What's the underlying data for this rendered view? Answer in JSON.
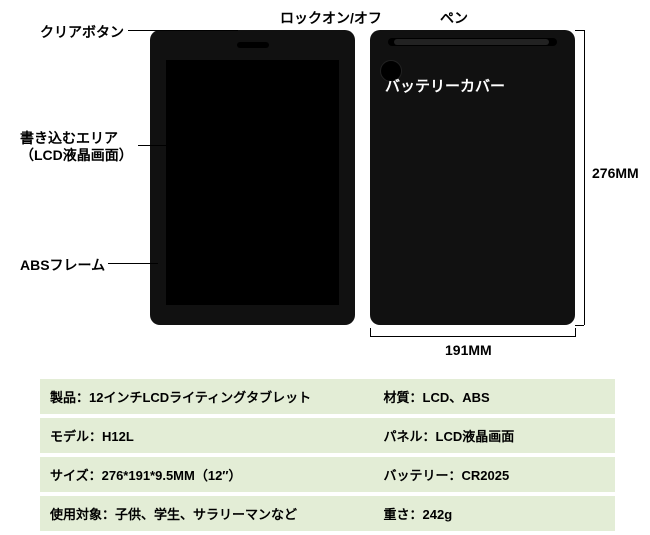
{
  "labels": {
    "clear_button": "クリアボタン",
    "lock_on_off": "ロックオン/オフ",
    "pen": "ペン",
    "battery_cover": "バッテリーカバー",
    "writing_area_1": "書き込むエリア",
    "writing_area_2": "（LCD液晶画面）",
    "abs_frame": "ABSフレーム"
  },
  "dimensions": {
    "height": "276MM",
    "width": "191MM"
  },
  "spec_table": {
    "rows": [
      {
        "left_key": "製品：",
        "left_val": "12インチLCDライティングタブレット",
        "right_key": "材質：",
        "right_val": "LCD、ABS"
      },
      {
        "left_key": "モデル：",
        "left_val": "H12L",
        "right_key": "パネル：",
        "right_val": "LCD液晶画面"
      },
      {
        "left_key": "サイズ：",
        "left_val": "276*191*9.5MM（12″）",
        "right_key": "バッテリー：",
        "right_val": "CR2025"
      },
      {
        "left_key": "使用対象：",
        "left_val": "子供、学生、サラリーマンなど",
        "right_key": "重さ：",
        "right_val": "242g"
      }
    ]
  },
  "colors": {
    "spec_row_bg": "#e3edd6",
    "tablet_body": "#111111",
    "tablet_lcd": "#000000",
    "background": "#ffffff",
    "text": "#000000"
  },
  "fontsize": {
    "label": 14,
    "spec": 13
  }
}
